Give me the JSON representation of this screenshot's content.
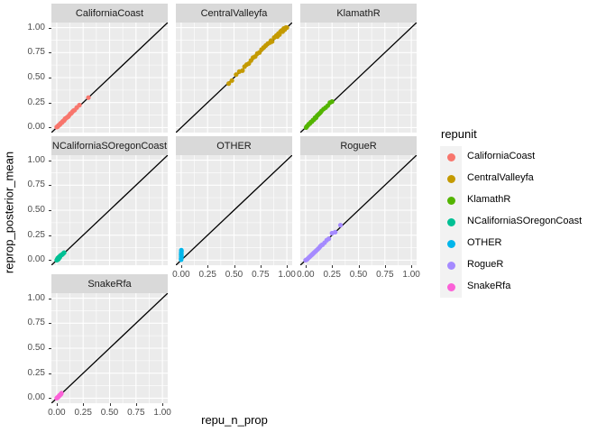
{
  "figure": {
    "x_axis_title": "repu_n_prop",
    "y_axis_title": "reprop_posterior_mean",
    "legend_title": "repunit"
  },
  "chart_data": {
    "type": "scatter",
    "facet_variable": "repunit",
    "xlabel": "repu_n_prop",
    "ylabel": "reprop_posterior_mean",
    "xlim": [
      0,
      1
    ],
    "ylim": [
      0,
      1
    ],
    "x_ticks": [
      0,
      0.25,
      0.5,
      0.75,
      1
    ],
    "y_ticks": [
      0,
      0.25,
      0.5,
      0.75,
      1
    ],
    "tick_labels": [
      "0.00",
      "0.25",
      "0.50",
      "0.75",
      "1.00"
    ],
    "minor_ticks": [
      0.125,
      0.375,
      0.625,
      0.875
    ],
    "grid": "white major and minor on gray panel",
    "legend_position": "right",
    "panel_bg": "#ebebeb",
    "strip_bg": "#d9d9d9",
    "abline": {
      "intercept": 0,
      "slope": 1,
      "color": "#000000"
    },
    "facets": [
      {
        "label": "CaliforniaCoast",
        "color": "#F8766D",
        "points": [
          [
            0.0,
            0.005
          ],
          [
            0.01,
            0.01
          ],
          [
            0.015,
            0.02
          ],
          [
            0.02,
            0.025
          ],
          [
            0.03,
            0.03
          ],
          [
            0.035,
            0.04
          ],
          [
            0.04,
            0.045
          ],
          [
            0.05,
            0.05
          ],
          [
            0.055,
            0.06
          ],
          [
            0.06,
            0.065
          ],
          [
            0.07,
            0.07
          ],
          [
            0.075,
            0.08
          ],
          [
            0.08,
            0.09
          ],
          [
            0.09,
            0.095
          ],
          [
            0.1,
            0.105
          ],
          [
            0.11,
            0.11
          ],
          [
            0.12,
            0.125
          ],
          [
            0.13,
            0.14
          ],
          [
            0.14,
            0.145
          ],
          [
            0.15,
            0.16
          ],
          [
            0.16,
            0.17
          ],
          [
            0.17,
            0.175
          ],
          [
            0.19,
            0.2
          ],
          [
            0.215,
            0.225
          ],
          [
            0.3,
            0.3
          ]
        ]
      },
      {
        "label": "CentralValleyfa",
        "color": "#C49A00",
        "points": [
          [
            0.45,
            0.44
          ],
          [
            0.48,
            0.47
          ],
          [
            0.52,
            0.53
          ],
          [
            0.55,
            0.56
          ],
          [
            0.58,
            0.57
          ],
          [
            0.6,
            0.61
          ],
          [
            0.62,
            0.63
          ],
          [
            0.64,
            0.64
          ],
          [
            0.66,
            0.67
          ],
          [
            0.68,
            0.7
          ],
          [
            0.7,
            0.71
          ],
          [
            0.72,
            0.74
          ],
          [
            0.74,
            0.75
          ],
          [
            0.76,
            0.78
          ],
          [
            0.78,
            0.8
          ],
          [
            0.8,
            0.82
          ],
          [
            0.82,
            0.84
          ],
          [
            0.84,
            0.85
          ],
          [
            0.85,
            0.87
          ],
          [
            0.86,
            0.86
          ],
          [
            0.88,
            0.9
          ],
          [
            0.9,
            0.92
          ],
          [
            0.91,
            0.91
          ],
          [
            0.92,
            0.94
          ],
          [
            0.93,
            0.93
          ],
          [
            0.94,
            0.96
          ],
          [
            0.95,
            0.97
          ],
          [
            0.96,
            0.96
          ],
          [
            0.97,
            0.99
          ],
          [
            0.98,
            0.98
          ],
          [
            0.99,
            1.0
          ],
          [
            1.0,
            1.0
          ]
        ]
      },
      {
        "label": "KlamathR",
        "color": "#53B400",
        "points": [
          [
            0.005,
            0.0
          ],
          [
            0.01,
            0.01
          ],
          [
            0.02,
            0.02
          ],
          [
            0.03,
            0.035
          ],
          [
            0.04,
            0.04
          ],
          [
            0.05,
            0.055
          ],
          [
            0.06,
            0.06
          ],
          [
            0.07,
            0.075
          ],
          [
            0.08,
            0.08
          ],
          [
            0.09,
            0.1
          ],
          [
            0.1,
            0.1
          ],
          [
            0.11,
            0.12
          ],
          [
            0.12,
            0.13
          ],
          [
            0.13,
            0.14
          ],
          [
            0.14,
            0.15
          ],
          [
            0.15,
            0.165
          ],
          [
            0.17,
            0.185
          ],
          [
            0.19,
            0.2
          ],
          [
            0.21,
            0.22
          ],
          [
            0.23,
            0.25
          ],
          [
            0.25,
            0.26
          ]
        ]
      },
      {
        "label": "NCaliforniaSOregonCoast",
        "color": "#00C094",
        "points": [
          [
            0.0,
            0.0
          ],
          [
            0.005,
            0.01
          ],
          [
            0.01,
            0.005
          ],
          [
            0.01,
            0.02
          ],
          [
            0.015,
            0.025
          ],
          [
            0.02,
            0.015
          ],
          [
            0.02,
            0.03
          ],
          [
            0.025,
            0.035
          ],
          [
            0.03,
            0.03
          ],
          [
            0.035,
            0.045
          ],
          [
            0.04,
            0.05
          ],
          [
            0.05,
            0.055
          ],
          [
            0.06,
            0.065
          ],
          [
            0.07,
            0.075
          ]
        ]
      },
      {
        "label": "OTHER",
        "color": "#00B6EB",
        "points": [
          [
            0.0,
            0.005
          ],
          [
            0.0,
            0.015
          ],
          [
            0.002,
            0.025
          ],
          [
            0.001,
            0.035
          ],
          [
            0.003,
            0.045
          ],
          [
            0.0,
            0.055
          ],
          [
            0.002,
            0.065
          ],
          [
            0.001,
            0.075
          ],
          [
            0.003,
            0.09
          ],
          [
            0.002,
            0.1
          ]
        ]
      },
      {
        "label": "RogueR",
        "color": "#A58AFF",
        "points": [
          [
            0.0,
            0.0
          ],
          [
            0.01,
            0.005
          ],
          [
            0.02,
            0.015
          ],
          [
            0.03,
            0.025
          ],
          [
            0.04,
            0.035
          ],
          [
            0.05,
            0.045
          ],
          [
            0.06,
            0.055
          ],
          [
            0.07,
            0.065
          ],
          [
            0.08,
            0.075
          ],
          [
            0.09,
            0.085
          ],
          [
            0.1,
            0.095
          ],
          [
            0.11,
            0.105
          ],
          [
            0.12,
            0.115
          ],
          [
            0.13,
            0.125
          ],
          [
            0.14,
            0.14
          ],
          [
            0.15,
            0.15
          ],
          [
            0.16,
            0.155
          ],
          [
            0.18,
            0.175
          ],
          [
            0.2,
            0.2
          ],
          [
            0.22,
            0.215
          ],
          [
            0.25,
            0.27
          ],
          [
            0.28,
            0.28
          ],
          [
            0.33,
            0.35
          ]
        ]
      },
      {
        "label": "SnakeRfa",
        "color": "#FB61D7",
        "points": [
          [
            0.0,
            0.0
          ],
          [
            0.005,
            0.005
          ],
          [
            0.01,
            0.008
          ],
          [
            0.015,
            0.015
          ],
          [
            0.02,
            0.018
          ],
          [
            0.025,
            0.028
          ],
          [
            0.03,
            0.03
          ],
          [
            0.04,
            0.04
          ],
          [
            0.045,
            0.05
          ]
        ]
      }
    ]
  }
}
